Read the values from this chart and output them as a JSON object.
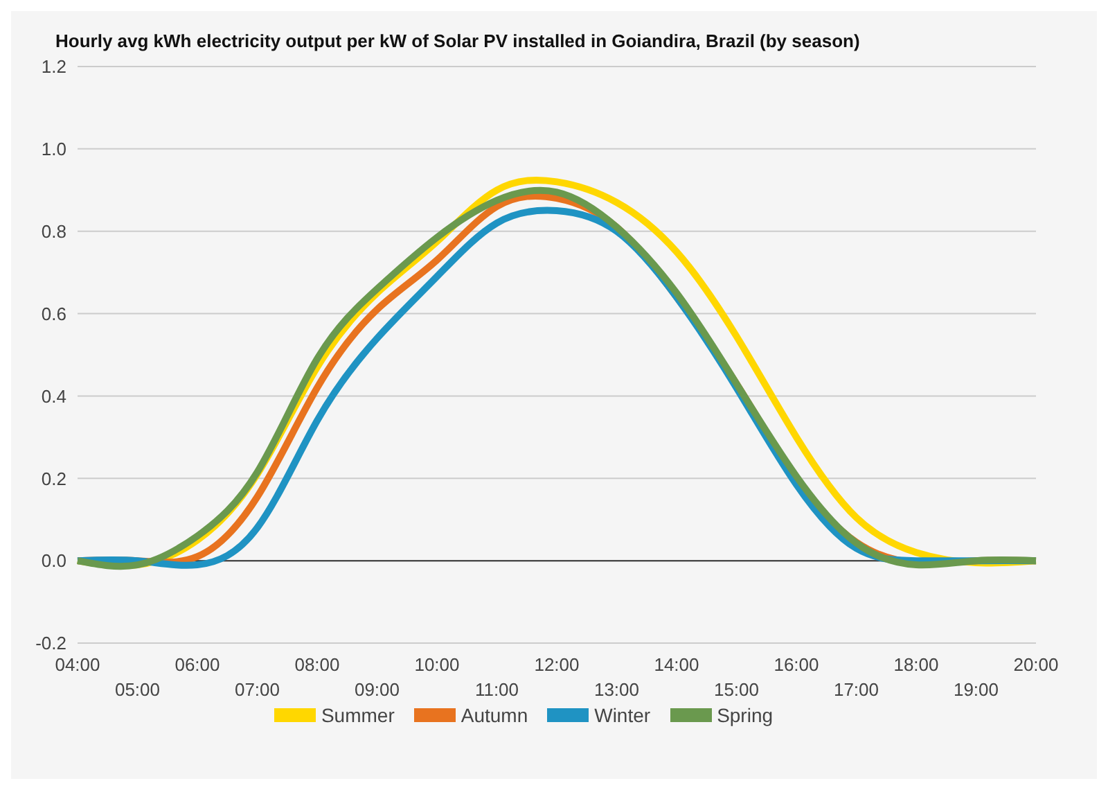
{
  "chart_data": {
    "type": "line",
    "title": "Hourly avg kWh electricity output per kW of Solar PV installed in Goiandira, Brazil (by season)",
    "categories": [
      "04:00",
      "05:00",
      "06:00",
      "07:00",
      "08:00",
      "09:00",
      "10:00",
      "11:00",
      "12:00",
      "13:00",
      "14:00",
      "15:00",
      "16:00",
      "17:00",
      "18:00",
      "19:00",
      "20:00"
    ],
    "series": [
      {
        "name": "Summer",
        "color": "#ffd700",
        "values": [
          0,
          -0.01,
          0.05,
          0.21,
          0.47,
          0.65,
          0.775,
          0.9,
          0.92,
          0.87,
          0.75,
          0.545,
          0.3,
          0.105,
          0.02,
          -0.005,
          0
        ]
      },
      {
        "name": "Autumn",
        "color": "#e8731f",
        "values": [
          0,
          0,
          0.01,
          0.155,
          0.42,
          0.61,
          0.73,
          0.86,
          0.88,
          0.81,
          0.64,
          0.43,
          0.2,
          0.045,
          -0.005,
          0,
          0
        ]
      },
      {
        "name": "Winter",
        "color": "#1f93c3",
        "values": [
          0,
          0,
          -0.01,
          0.08,
          0.34,
          0.54,
          0.69,
          0.82,
          0.85,
          0.8,
          0.64,
          0.42,
          0.185,
          0.03,
          0,
          0,
          0
        ]
      },
      {
        "name": "Spring",
        "color": "#6a994e",
        "values": [
          0,
          -0.01,
          0.06,
          0.215,
          0.49,
          0.66,
          0.785,
          0.875,
          0.895,
          0.81,
          0.65,
          0.43,
          0.205,
          0.043,
          -0.01,
          0,
          0
        ]
      }
    ],
    "ylim": [
      -0.2,
      1.2
    ],
    "yticks": [
      {
        "value": -0.2,
        "label": "-0.2"
      },
      {
        "value": 0,
        "label": "0.0"
      },
      {
        "value": 0.2,
        "label": "0.2"
      },
      {
        "value": 0.4,
        "label": "0.4"
      },
      {
        "value": 0.6,
        "label": "0.6"
      },
      {
        "value": 0.8,
        "label": "0.8"
      },
      {
        "value": 1,
        "label": "1.0"
      },
      {
        "value": 1.2,
        "label": "1.2"
      }
    ],
    "ref_lines": [
      {
        "axis": "y",
        "value": 0,
        "color": "#333333"
      }
    ],
    "grid": "y",
    "legend": "bottom",
    "marker": "none",
    "line_style": "solid"
  }
}
